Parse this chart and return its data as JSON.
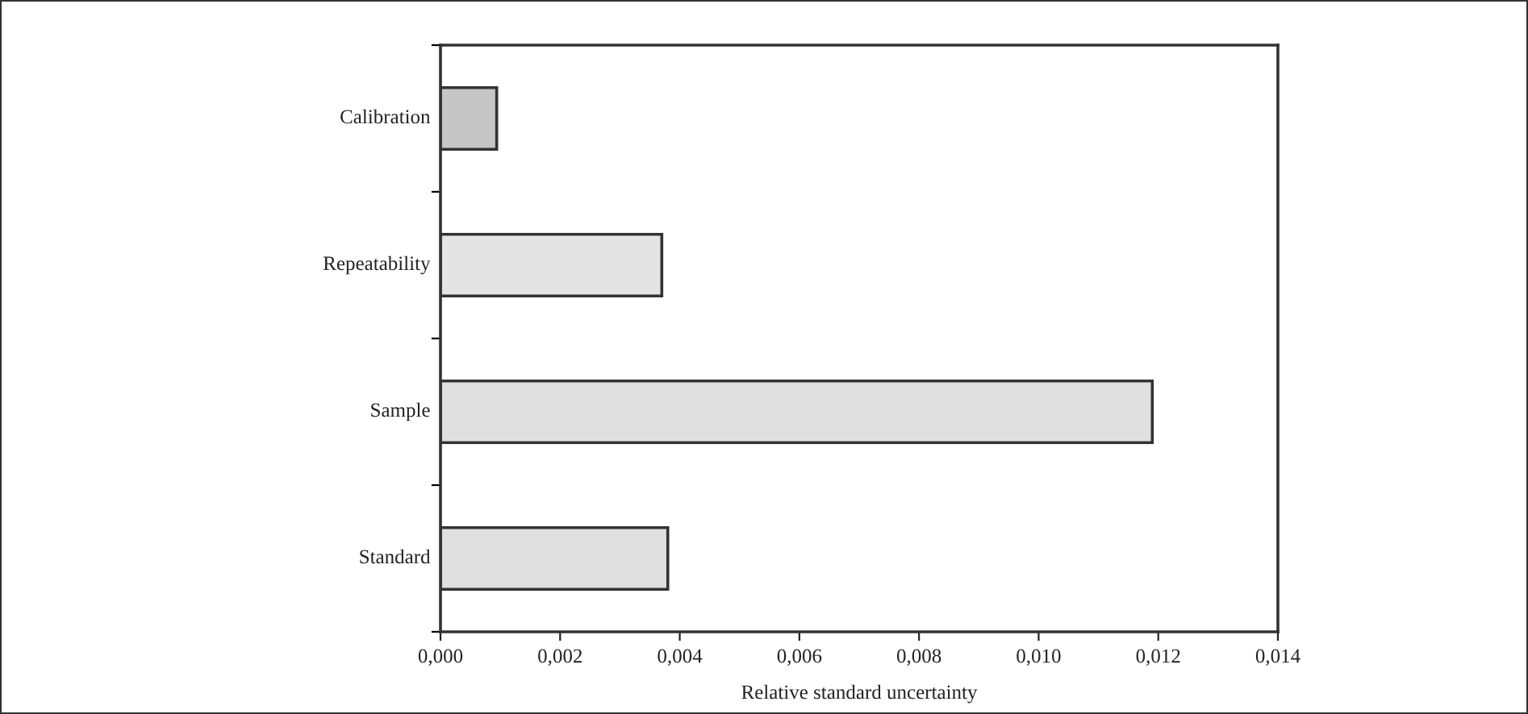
{
  "chart_data": {
    "type": "bar",
    "orientation": "horizontal",
    "xlabel": "Relative standard uncertainty",
    "categories": [
      "Calibration",
      "Repeatability",
      "Sample",
      "Standard"
    ],
    "values": [
      0.00094,
      0.0037,
      0.0119,
      0.0038
    ],
    "colors": [
      "#c6c6c6",
      "#e4e4e4",
      "#e0e0e0",
      "#e0e0e0"
    ],
    "xlim": [
      0,
      0.014
    ],
    "xticks": [
      {
        "value": 0,
        "label": "0,000"
      },
      {
        "value": 0.002,
        "label": "0,002"
      },
      {
        "value": 0.004,
        "label": "0,004"
      },
      {
        "value": 0.006,
        "label": "0,006"
      },
      {
        "value": 0.008,
        "label": "0,008"
      },
      {
        "value": 0.01,
        "label": "0,010"
      },
      {
        "value": 0.012,
        "label": "0,012"
      },
      {
        "value": 0.014,
        "label": "0,014"
      }
    ],
    "grid": false,
    "legend": false
  }
}
